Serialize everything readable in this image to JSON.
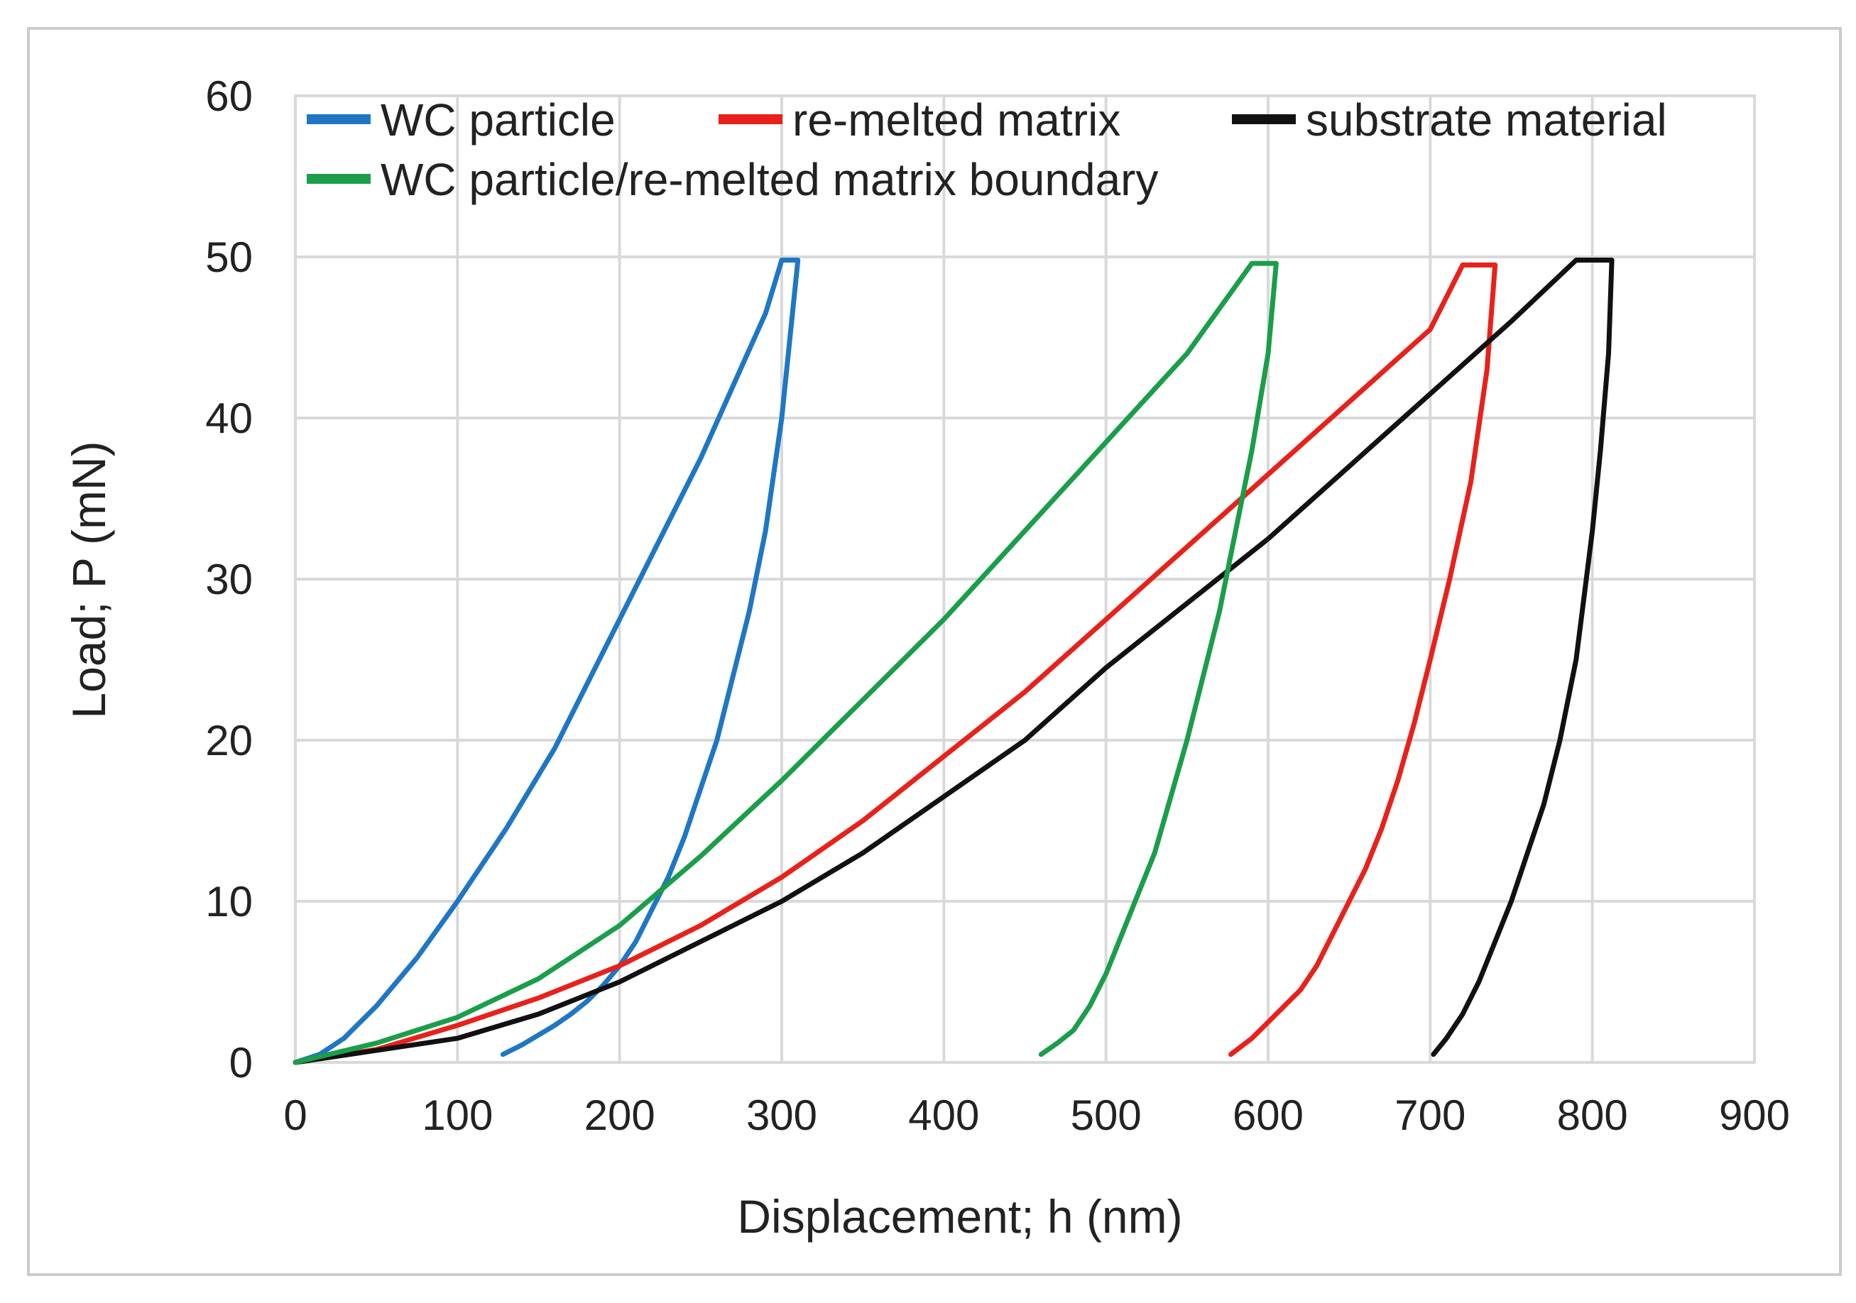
{
  "chart_data": {
    "type": "line",
    "title": "",
    "xlabel": "Displacement; h (nm)",
    "ylabel": "Load; P (mN)",
    "xlim": [
      0,
      900
    ],
    "ylim": [
      0,
      60
    ],
    "xticks": [
      0,
      100,
      200,
      300,
      400,
      500,
      600,
      700,
      800,
      900
    ],
    "yticks": [
      0,
      10,
      20,
      30,
      40,
      50,
      60
    ],
    "grid": true,
    "legend_position": "top",
    "series": [
      {
        "name": "WC particle",
        "color": "#1f77c4",
        "x": [
          0,
          15,
          30,
          50,
          75,
          100,
          130,
          160,
          190,
          220,
          250,
          270,
          290,
          300,
          305,
          310,
          300,
          290,
          280,
          270,
          260,
          250,
          240,
          230,
          220,
          210,
          200,
          190,
          180,
          170,
          160,
          150,
          140,
          128
        ],
        "y": [
          0,
          0.5,
          1.5,
          3.5,
          6.5,
          10,
          14.5,
          19.5,
          25.5,
          31.5,
          37.5,
          42,
          46.5,
          49.8,
          49.8,
          49.8,
          40,
          33,
          28,
          24,
          20,
          17,
          14,
          11.5,
          9.5,
          7.5,
          6,
          4.8,
          3.8,
          3,
          2.3,
          1.7,
          1.1,
          0.5
        ]
      },
      {
        "name": "re-melted matrix",
        "color": "#e8211b",
        "x": [
          0,
          50,
          100,
          150,
          200,
          250,
          300,
          350,
          400,
          450,
          500,
          550,
          600,
          650,
          700,
          720,
          730,
          740,
          735,
          725,
          712,
          700,
          690,
          680,
          670,
          660,
          650,
          640,
          630,
          620,
          610,
          600,
          590,
          577
        ],
        "y": [
          0,
          0.8,
          2.3,
          4,
          6,
          8.5,
          11.5,
          15,
          19,
          23,
          27.5,
          32,
          36.5,
          41,
          45.5,
          49.5,
          49.5,
          49.5,
          43,
          36,
          30,
          25,
          21,
          17.5,
          14.5,
          12,
          10,
          8,
          6,
          4.5,
          3.5,
          2.5,
          1.5,
          0.5
        ]
      },
      {
        "name": "substrate material",
        "color": "#111111",
        "x": [
          0,
          100,
          150,
          200,
          250,
          300,
          350,
          400,
          450,
          500,
          550,
          600,
          650,
          700,
          750,
          790,
          800,
          812,
          810,
          805,
          800,
          795,
          790,
          780,
          770,
          760,
          750,
          740,
          730,
          720,
          710,
          702
        ],
        "y": [
          0,
          1.5,
          3,
          5,
          7.5,
          10,
          13,
          16.5,
          20,
          24.5,
          28.5,
          32.5,
          37,
          41.5,
          46,
          49.8,
          49.8,
          49.8,
          44,
          38,
          33,
          29,
          25,
          20,
          16,
          13,
          10,
          7.5,
          5,
          3,
          1.5,
          0.5
        ]
      },
      {
        "name": "WC particle/re-melted matrix boundary",
        "color": "#1a9e4a",
        "x": [
          0,
          50,
          100,
          150,
          200,
          250,
          300,
          350,
          400,
          450,
          500,
          550,
          590,
          597,
          605,
          600,
          590,
          580,
          570,
          560,
          550,
          540,
          530,
          520,
          510,
          500,
          490,
          480,
          470,
          460
        ],
        "y": [
          0,
          1.2,
          2.8,
          5.2,
          8.5,
          12.8,
          17.5,
          22.5,
          27.5,
          33,
          38.5,
          44,
          49.6,
          49.6,
          49.6,
          44,
          38,
          33,
          28,
          24,
          20,
          16.5,
          13,
          10.5,
          8,
          5.5,
          3.5,
          2,
          1.2,
          0.5
        ]
      }
    ]
  }
}
